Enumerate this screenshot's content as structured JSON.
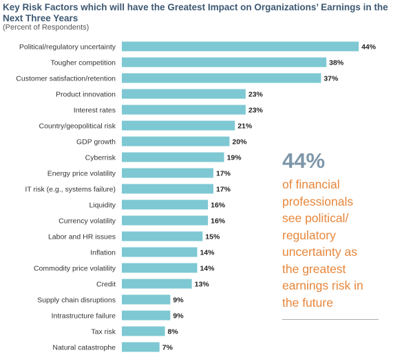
{
  "colors": {
    "bar": "#7dc8d3",
    "title": "#3d5872",
    "highlight_value": "#7d96a9",
    "highlight_text": "#e8863a"
  },
  "callout": {
    "value": "44%",
    "lines": [
      "of financial",
      "professionals",
      "see political/",
      "regulatory",
      "uncertainty as",
      "the greatest",
      "earnings risk in",
      "the future"
    ]
  },
  "chart_data": {
    "type": "bar",
    "orientation": "horizontal",
    "title": "Key Risk Factors which will have the Greatest Impact on Organizations’ Earnings in the Next Three Years",
    "subtitle": "(Percent of Respondents)",
    "xlabel": "",
    "ylabel": "",
    "unit": "%",
    "categories": [
      "Political/regulatory uncertainty",
      "Tougher competition",
      "Customer satisfaction/retention",
      "Product innovation",
      "Interest rates",
      "Country/geopolitical risk",
      "GDP growth",
      "Cyberrisk",
      "Energy price volatility",
      "IT risk (e.g., systems failure)",
      "Liquidity",
      "Currency volatility",
      "Labor and HR issues",
      "Inflation",
      "Commodity price volatility",
      "Credit",
      "Supply chain disruptions",
      "Intrastructure failure",
      "Tax risk",
      "Natural catastrophe"
    ],
    "values": [
      44,
      38,
      37,
      23,
      23,
      21,
      20,
      19,
      17,
      17,
      16,
      16,
      15,
      14,
      14,
      13,
      9,
      9,
      8,
      7
    ],
    "value_labels": [
      "44%",
      "38%",
      "37%",
      "23%",
      "23%",
      "21%",
      "20%",
      "19%",
      "17%",
      "17%",
      "16%",
      "16%",
      "15%",
      "14%",
      "14%",
      "13%",
      "9%",
      "9%",
      "8%",
      "7%"
    ],
    "grid": false,
    "legend": "none"
  }
}
